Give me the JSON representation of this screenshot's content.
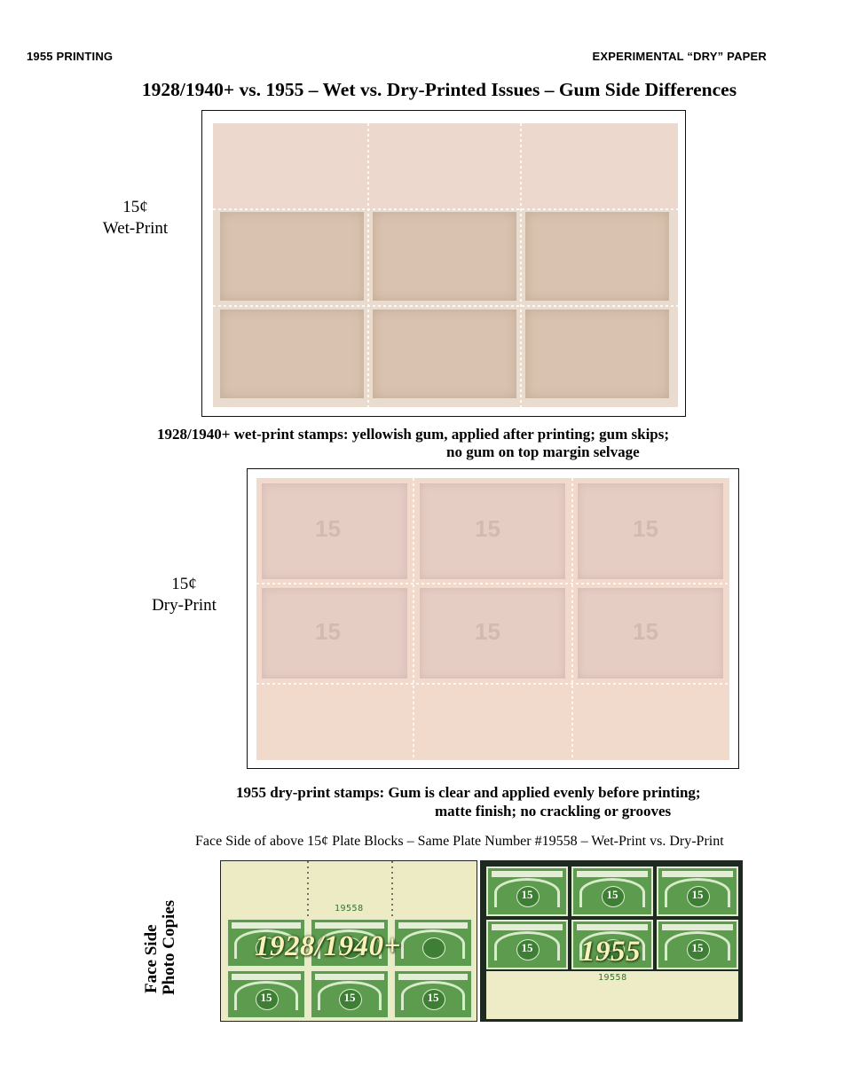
{
  "header": {
    "left": "1955 PRINTING",
    "right": "EXPERIMENTAL “DRY” PAPER"
  },
  "title": "1928/1940+ vs. 1955 – Wet vs. Dry-Printed Issues – Gum Side Differences",
  "wet_block": {
    "label_line1": "15¢",
    "label_line2": "Wet-Print",
    "caption_line1": "1928/1940+ wet-print stamps:  yellowish gum, applied after printing; gum skips;",
    "caption_line2": "no gum on top margin selvage"
  },
  "dry_block": {
    "label_line1": "15¢",
    "label_line2": "Dry-Print",
    "caption_line1": "1955 dry-print stamps: Gum is clear and applied evenly before printing;",
    "caption_line2": "matte finish; no crackling or grooves"
  },
  "face_section": {
    "caption": "Face Side of above 15¢ Plate Blocks – Same Plate Number #19558 – Wet-Print vs. Dry-Print",
    "vertical_line1": "Face Side",
    "vertical_line2": "Photo Copies",
    "left_overlay": "1928/1940+",
    "right_overlay": "1955",
    "plate_number_left": "19558",
    "plate_number_right": "19558",
    "stamp_value": "15"
  }
}
